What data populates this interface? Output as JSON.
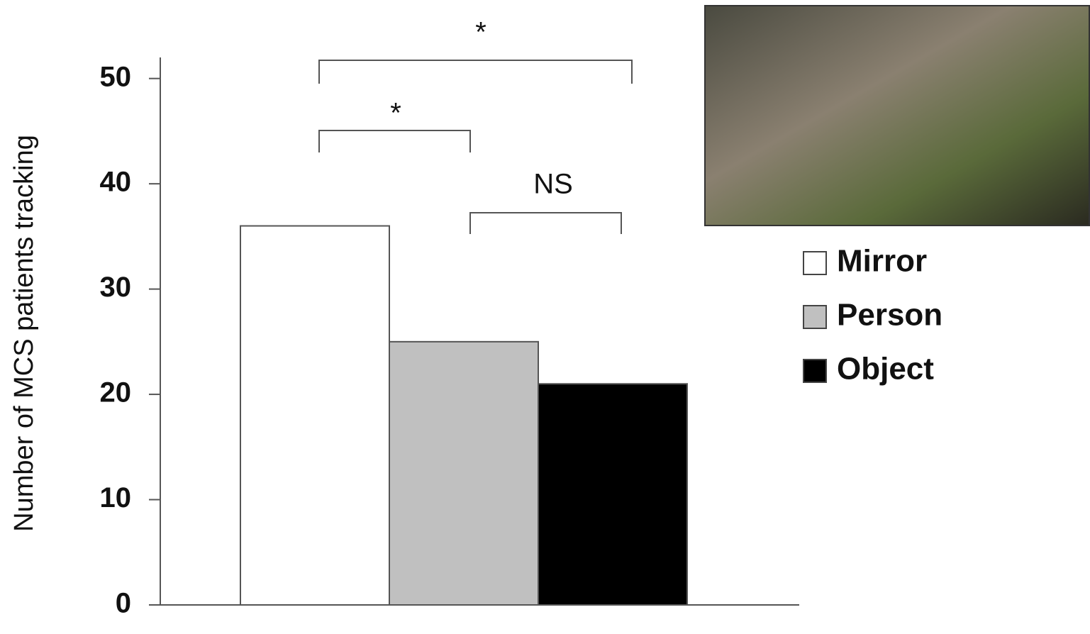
{
  "chart_data": {
    "type": "bar",
    "y_label": "Number of MCS patients tracking",
    "categories": [
      null
    ],
    "series": [
      {
        "name": "Mirror",
        "color": "#ffffff",
        "values": [
          36
        ]
      },
      {
        "name": "Person",
        "color": "#c0c0c0",
        "values": [
          25
        ]
      },
      {
        "name": "Object",
        "color": "#000000",
        "values": [
          21
        ]
      }
    ],
    "ylim": [
      0,
      52
    ],
    "yticks": [
      0,
      10,
      20,
      30,
      40,
      50
    ],
    "annotations": [
      "*",
      "*",
      "NS"
    ]
  }
}
